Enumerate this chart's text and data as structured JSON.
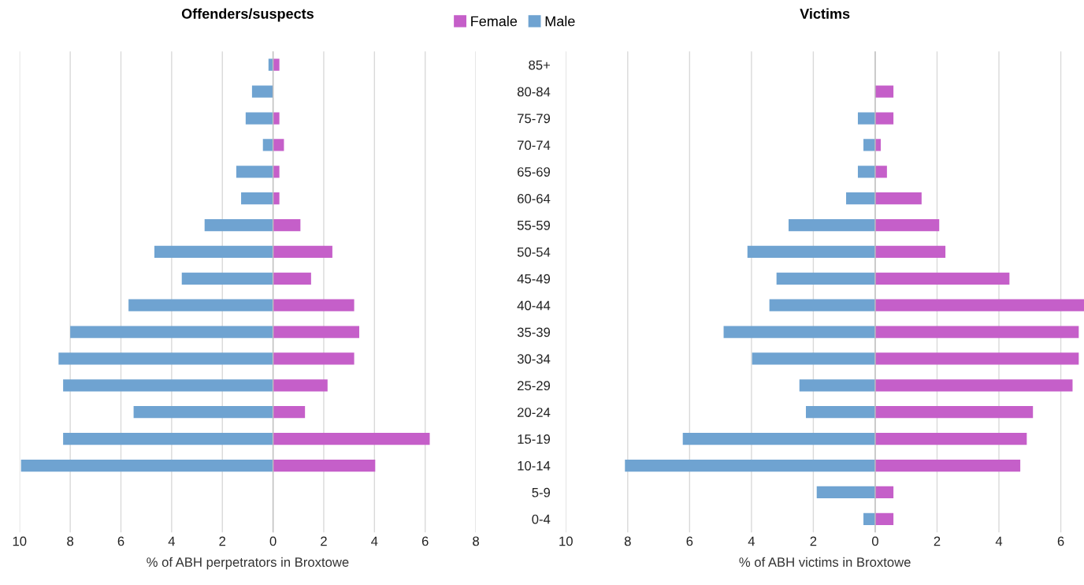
{
  "chart_data": [
    {
      "type": "bar",
      "orientation": "horizontal",
      "stacked": true,
      "title": "Offenders/suspects",
      "xlabel": "% of ABH perpetrators in Broxtowe",
      "categories": [
        null,
        null,
        null,
        null,
        null,
        null,
        null,
        null,
        null,
        null,
        null,
        null,
        null,
        null,
        null,
        null,
        null,
        null
      ],
      "series": [
        {
          "name": "Female",
          "color": "#c55fc9",
          "values": [
            0.25,
            null,
            0.25,
            0.43,
            0.25,
            0.25,
            1.08,
            2.34,
            1.5,
            3.2,
            3.4,
            3.2,
            2.15,
            1.26,
            6.18,
            4.03,
            null,
            null
          ]
        },
        {
          "name": "Male",
          "color": "#6fa3d1",
          "values": [
            -0.18,
            -0.83,
            -1.08,
            -0.4,
            -1.45,
            -1.26,
            -2.7,
            -4.68,
            -3.6,
            -5.7,
            -8.0,
            -8.46,
            -8.28,
            -5.5,
            -8.28,
            -9.94,
            null,
            null
          ]
        }
      ],
      "xlim": [
        -10,
        8
      ],
      "xticks": [
        {
          "value": -10,
          "label": "10"
        },
        {
          "value": -8,
          "label": "8"
        },
        {
          "value": -6,
          "label": "6"
        },
        {
          "value": -4,
          "label": "4"
        },
        {
          "value": -2,
          "label": "2"
        },
        0,
        2,
        4,
        6,
        8
      ],
      "grid": "x",
      "legend": "top",
      "tick_labels": "x"
    },
    {
      "type": "bar",
      "orientation": "horizontal",
      "stacked": true,
      "title": "Victims",
      "xlabel": "% of ABH victims in Broxtowe",
      "categories": [
        "85+",
        "80-84",
        "75-79",
        "70-74",
        "65-69",
        "60-64",
        "55-59",
        "50-54",
        "45-49",
        "40-44",
        "35-39",
        "30-34",
        "25-29",
        "20-24",
        "15-19",
        "10-14",
        "5-9",
        "0-4"
      ],
      "series": [
        {
          "color": "#c55fc9",
          "values": [
            null,
            0.59,
            0.59,
            0.18,
            0.38,
            1.5,
            2.07,
            2.27,
            4.34,
            6.75,
            6.58,
            6.58,
            6.38,
            5.1,
            4.9,
            4.69,
            0.59,
            0.59
          ]
        },
        {
          "color": "#6fa3d1",
          "values": [
            null,
            null,
            -0.56,
            -0.38,
            -0.56,
            -0.94,
            -2.8,
            -4.13,
            -3.19,
            -3.42,
            -4.9,
            -3.98,
            -2.45,
            -2.24,
            -6.22,
            -8.09,
            -1.89,
            -0.38
          ]
        }
      ],
      "xlim": [
        -10,
        6.75
      ],
      "xticks": [
        {
          "value": -10,
          "label": "10"
        },
        {
          "value": -8,
          "label": "8"
        },
        {
          "value": -6,
          "label": "6"
        },
        {
          "value": -4,
          "label": "4"
        },
        {
          "value": -2,
          "label": "2"
        },
        0,
        2,
        4,
        6
      ],
      "grid": "x"
    }
  ]
}
